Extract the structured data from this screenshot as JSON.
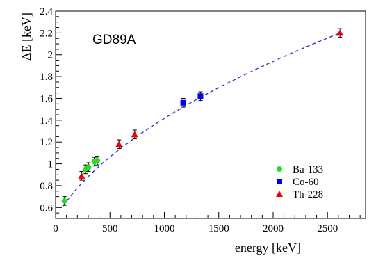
{
  "chart_data": {
    "type": "scatter",
    "title": "GD89A",
    "xlabel": "energy [keV]",
    "ylabel": "ΔE [keV]",
    "xlim": [
      0,
      2850
    ],
    "ylim": [
      0.5,
      2.4
    ],
    "x_ticks": [
      "0",
      "500",
      "1000",
      "1500",
      "2000",
      "2500"
    ],
    "x_tick_values": [
      0,
      500,
      1000,
      1500,
      2000,
      2500
    ],
    "y_ticks": [
      "0.6",
      "0.8",
      "1",
      "1.2",
      "1.4",
      "1.6",
      "1.8",
      "2",
      "2.2",
      "2.4"
    ],
    "y_tick_values": [
      0.6,
      0.8,
      1.0,
      1.2,
      1.4,
      1.6,
      1.8,
      2.0,
      2.2,
      2.4
    ],
    "grid": false,
    "legend_position": "right",
    "series": [
      {
        "name": "Ba-133",
        "marker": "circle",
        "color": "#22dd22",
        "x": [
          81,
          276,
          303,
          356,
          384
        ],
        "y": [
          0.66,
          0.95,
          0.97,
          1.02,
          1.03
        ],
        "err": [
          0.04,
          0.04,
          0.04,
          0.04,
          0.04
        ]
      },
      {
        "name": "Co-60",
        "marker": "square",
        "color": "#0000ee",
        "x": [
          1173,
          1332
        ],
        "y": [
          1.56,
          1.62
        ],
        "err": [
          0.04,
          0.04
        ]
      },
      {
        "name": "Th-228",
        "marker": "triangle",
        "color": "#ee0000",
        "x": [
          239,
          583,
          727,
          2615
        ],
        "y": [
          0.89,
          1.18,
          1.27,
          2.2
        ],
        "err": [
          0.04,
          0.04,
          0.04,
          0.04
        ]
      }
    ],
    "fit": {
      "style": "dashed",
      "color": "#3333cc",
      "x_range": [
        70,
        2620
      ],
      "model": "sqrt(a + b*E)",
      "a": 0.2548,
      "b": 0.001753
    }
  }
}
